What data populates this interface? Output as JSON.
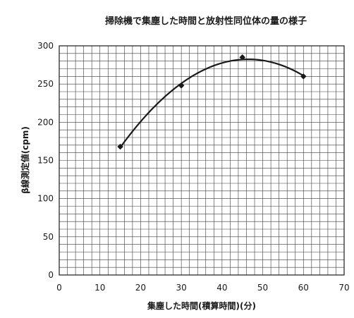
{
  "chart_data": {
    "type": "scatter",
    "title": "掃除機で集塵した時間と放射性同位体の量の様子",
    "xlabel": "集塵した時間(積算時間)(分)",
    "ylabel": "β線測定値(cpm)",
    "xlim": [
      0,
      70
    ],
    "ylim": [
      0,
      300
    ],
    "xticks": [
      "0",
      "10",
      "20",
      "30",
      "40",
      "50",
      "60",
      "70"
    ],
    "yticks": [
      "0",
      "50",
      "100",
      "150",
      "200",
      "250",
      "300"
    ],
    "grid": true,
    "minor_grid_step_x": 2,
    "minor_grid_step_y": 10,
    "series": [
      {
        "x": [
          15,
          30,
          45,
          60
        ],
        "y": [
          168,
          248,
          285,
          260
        ],
        "marker": "diamond",
        "trendline": "polynomial-2",
        "color": "#1a1a1a"
      }
    ]
  }
}
